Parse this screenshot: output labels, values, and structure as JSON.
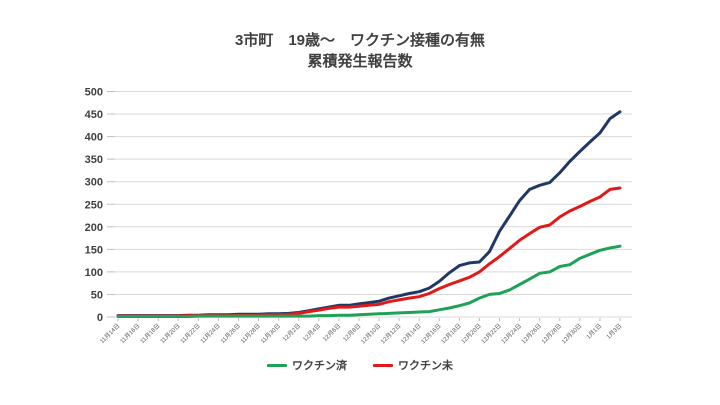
{
  "title": "3市町　19歳～　ワクチン接種の有無",
  "subtitle": "累積発生報告数",
  "chart_data": {
    "type": "line",
    "title": "3市町　19歳～　ワクチン接種の有無",
    "subtitle": "累積発生報告数",
    "ylim": [
      0,
      500
    ],
    "grid": "horizontal",
    "legend_position": "bottom",
    "y_ticks": [
      0,
      50,
      100,
      150,
      200,
      250,
      300,
      350,
      400,
      450,
      500
    ],
    "x_tick_labels": [
      "11月14日",
      "11月16日",
      "11月18日",
      "11月20日",
      "11月22日",
      "11月24日",
      "11月26日",
      "11月28日",
      "11月30日",
      "12月2日",
      "12月4日",
      "12月6日",
      "12月8日",
      "12月10日",
      "12月12日",
      "12月14日",
      "12月16日",
      "12月18日",
      "12月20日",
      "12月22日",
      "12月24日",
      "12月26日",
      "12月28日",
      "12月30日",
      "1月1日",
      "1月3日"
    ],
    "x_note": "daily points from 11月14日 to 1月3日, labels every 2 days",
    "legend": [
      {
        "label": "ワクチン済",
        "color": "#1fa258"
      },
      {
        "label": "ワクチン未",
        "color": "#e01a1a"
      }
    ],
    "series": [
      {
        "name": "",
        "in_legend": false,
        "color": "#203864",
        "values": [
          3,
          3,
          3,
          3,
          3,
          3,
          3,
          4,
          4,
          5,
          5,
          5,
          6,
          6,
          6,
          7,
          7,
          8,
          10,
          14,
          18,
          22,
          26,
          26,
          29,
          32,
          35,
          42,
          47,
          52,
          56,
          64,
          79,
          98,
          114,
          120,
          122,
          145,
          190,
          224,
          258,
          283,
          292,
          298,
          320,
          345,
          367,
          388,
          408,
          440,
          455
        ]
      },
      {
        "name": "ワクチン未",
        "in_legend": true,
        "color": "#e01a1a",
        "values": [
          2,
          2,
          2,
          2,
          2,
          2,
          2,
          3,
          3,
          3,
          3,
          3,
          4,
          4,
          4,
          5,
          5,
          6,
          8,
          12,
          15,
          19,
          22,
          22,
          24,
          26,
          28,
          34,
          38,
          42,
          45,
          52,
          63,
          72,
          80,
          88,
          100,
          118,
          134,
          152,
          170,
          185,
          199,
          204,
          222,
          235,
          245,
          256,
          266,
          283,
          286
        ]
      },
      {
        "name": "ワクチン済",
        "in_legend": true,
        "color": "#1fa258",
        "values": [
          1,
          1,
          1,
          1,
          1,
          1,
          1,
          1,
          2,
          2,
          2,
          2,
          2,
          2,
          2,
          2,
          2,
          2,
          2,
          2,
          3,
          3,
          4,
          4,
          5,
          6,
          7,
          8,
          9,
          10,
          11,
          12,
          16,
          20,
          25,
          31,
          42,
          50,
          52,
          60,
          72,
          84,
          97,
          100,
          112,
          116,
          130,
          139,
          148,
          153,
          157
        ]
      }
    ]
  }
}
